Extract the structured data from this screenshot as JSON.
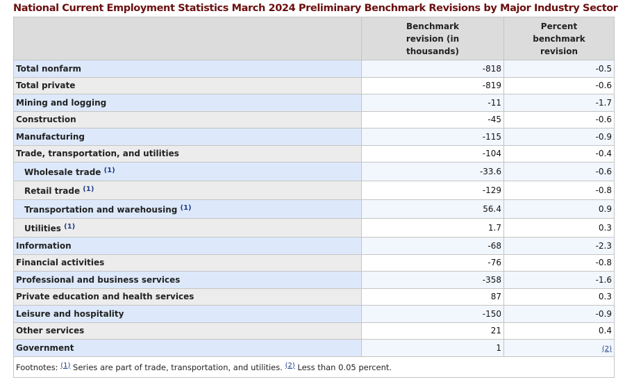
{
  "title": "National Current Employment Statistics March 2024  Preliminary Benchmark Revisions by Major Industry Sector",
  "headers": [
    "",
    "Benchmark revision (in thousands)",
    "Percent benchmark revision"
  ],
  "rows": [
    {
      "label": "Total nonfarm",
      "revision": "-818",
      "percent": "-0.5"
    },
    {
      "label": "Total private",
      "revision": "-819",
      "percent": "-0.6"
    },
    {
      "label": "Mining and logging",
      "revision": "-11",
      "percent": "-1.7"
    },
    {
      "label": "Construction",
      "revision": "-45",
      "percent": "-0.6"
    },
    {
      "label": "Manufacturing",
      "revision": "-115",
      "percent": "-0.9"
    },
    {
      "label": "Trade, transportation, and utilities",
      "revision": "-104",
      "percent": "-0.4"
    },
    {
      "label": "Wholesale trade",
      "footnote": "(1)",
      "sub": true,
      "revision": "-33.6",
      "percent": "-0.6"
    },
    {
      "label": "Retail trade",
      "footnote": "(1)",
      "sub": true,
      "revision": "-129",
      "percent": "-0.8"
    },
    {
      "label": "Transportation and warehousing",
      "footnote": "(1)",
      "sub": true,
      "revision": "56.4",
      "percent": "0.9"
    },
    {
      "label": "Utilities",
      "footnote": "(1)",
      "sub": true,
      "revision": "1.7",
      "percent": "0.3"
    },
    {
      "label": "Information",
      "revision": "-68",
      "percent": "-2.3"
    },
    {
      "label": "Financial activities",
      "revision": "-76",
      "percent": "-0.8"
    },
    {
      "label": "Professional and business services",
      "revision": "-358",
      "percent": "-1.6"
    },
    {
      "label": "Private education and health services",
      "revision": "87",
      "percent": "0.3"
    },
    {
      "label": "Leisure and hospitality",
      "revision": "-150",
      "percent": "-0.9"
    },
    {
      "label": "Other services",
      "revision": "21",
      "percent": "0.4"
    },
    {
      "label": "Government",
      "revision": "1",
      "percent": "(2)",
      "percent_is_link": true
    }
  ],
  "footnotes": {
    "prefix": "Footnotes:",
    "items": [
      {
        "mark": "(1)",
        "text": "Series are part of trade, transportation, and utilities."
      },
      {
        "mark": "(2)",
        "text": "Less than 0.05 percent."
      }
    ]
  },
  "colors": {
    "title": "#6b0f0f",
    "row_blue": "#dde9fb",
    "row_gray": "#ececec",
    "link": "#1f3c88"
  }
}
